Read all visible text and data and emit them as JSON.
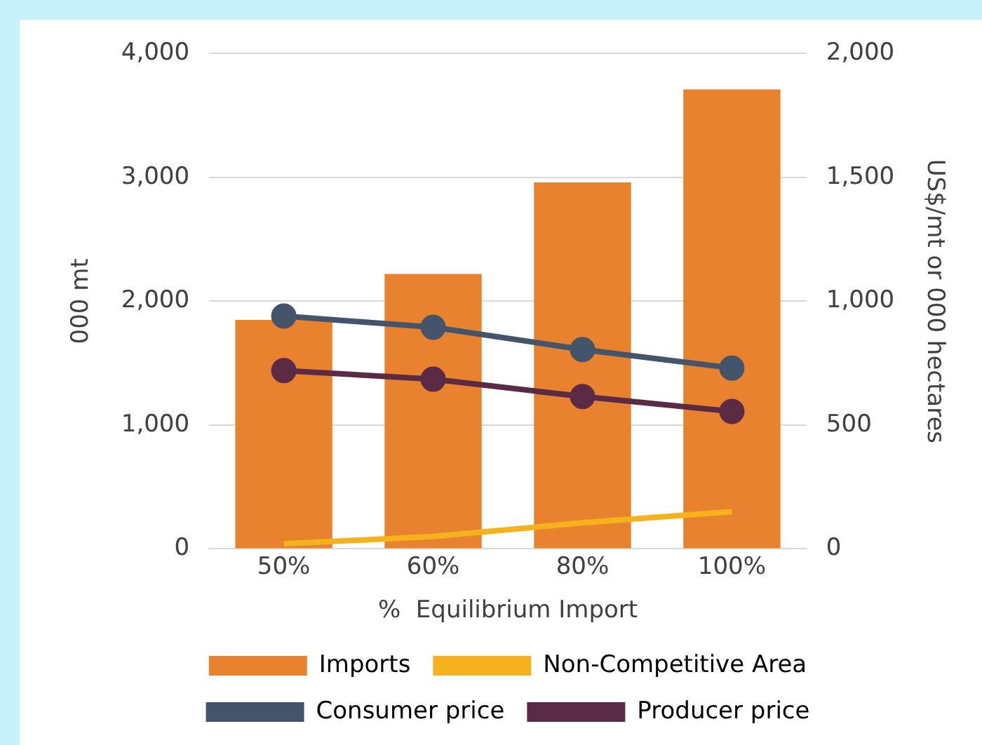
{
  "chart_data": {
    "type": "bar",
    "xlabel": "%  Equilibrium Import",
    "ylabel": "000 mt",
    "y2label": "US$/mt or 000 hectares",
    "categories": [
      "50%",
      "60%",
      "80%",
      "100%"
    ],
    "series": [
      {
        "name": "Imports",
        "color": "#e8822e",
        "values": [
          1850,
          2220,
          2960,
          3710
        ]
      },
      {
        "name": "Non-Competitive Area",
        "type": "line",
        "axis": "y2",
        "marker": "none",
        "color": "#f5b21d",
        "values": [
          20,
          50,
          105,
          150
        ]
      },
      {
        "name": "Consumer price",
        "type": "line",
        "axis": "y2",
        "marker": "circle",
        "color": "#44546a",
        "values": [
          940,
          895,
          805,
          730
        ]
      },
      {
        "name": "Producer price",
        "type": "line",
        "axis": "y2",
        "marker": "circle",
        "color": "#5b2b45",
        "values": [
          720,
          685,
          615,
          555
        ]
      }
    ],
    "ylim": [
      0,
      4000
    ],
    "yticks": [
      {
        "value": 0,
        "label": "0"
      },
      {
        "value": 1000,
        "label": "1,000"
      },
      {
        "value": 2000,
        "label": "2,000"
      },
      {
        "value": 3000,
        "label": "3,000"
      },
      {
        "value": 4000,
        "label": "4,000"
      }
    ],
    "y2lim": [
      0,
      2000
    ],
    "y2ticks": [
      {
        "value": 0,
        "label": "0"
      },
      {
        "value": 500,
        "label": "500"
      },
      {
        "value": 1000,
        "label": "1,000"
      },
      {
        "value": 1500,
        "label": "1,500"
      },
      {
        "value": 2000,
        "label": "2,000"
      }
    ],
    "grid": "y",
    "legend": "bottom"
  }
}
